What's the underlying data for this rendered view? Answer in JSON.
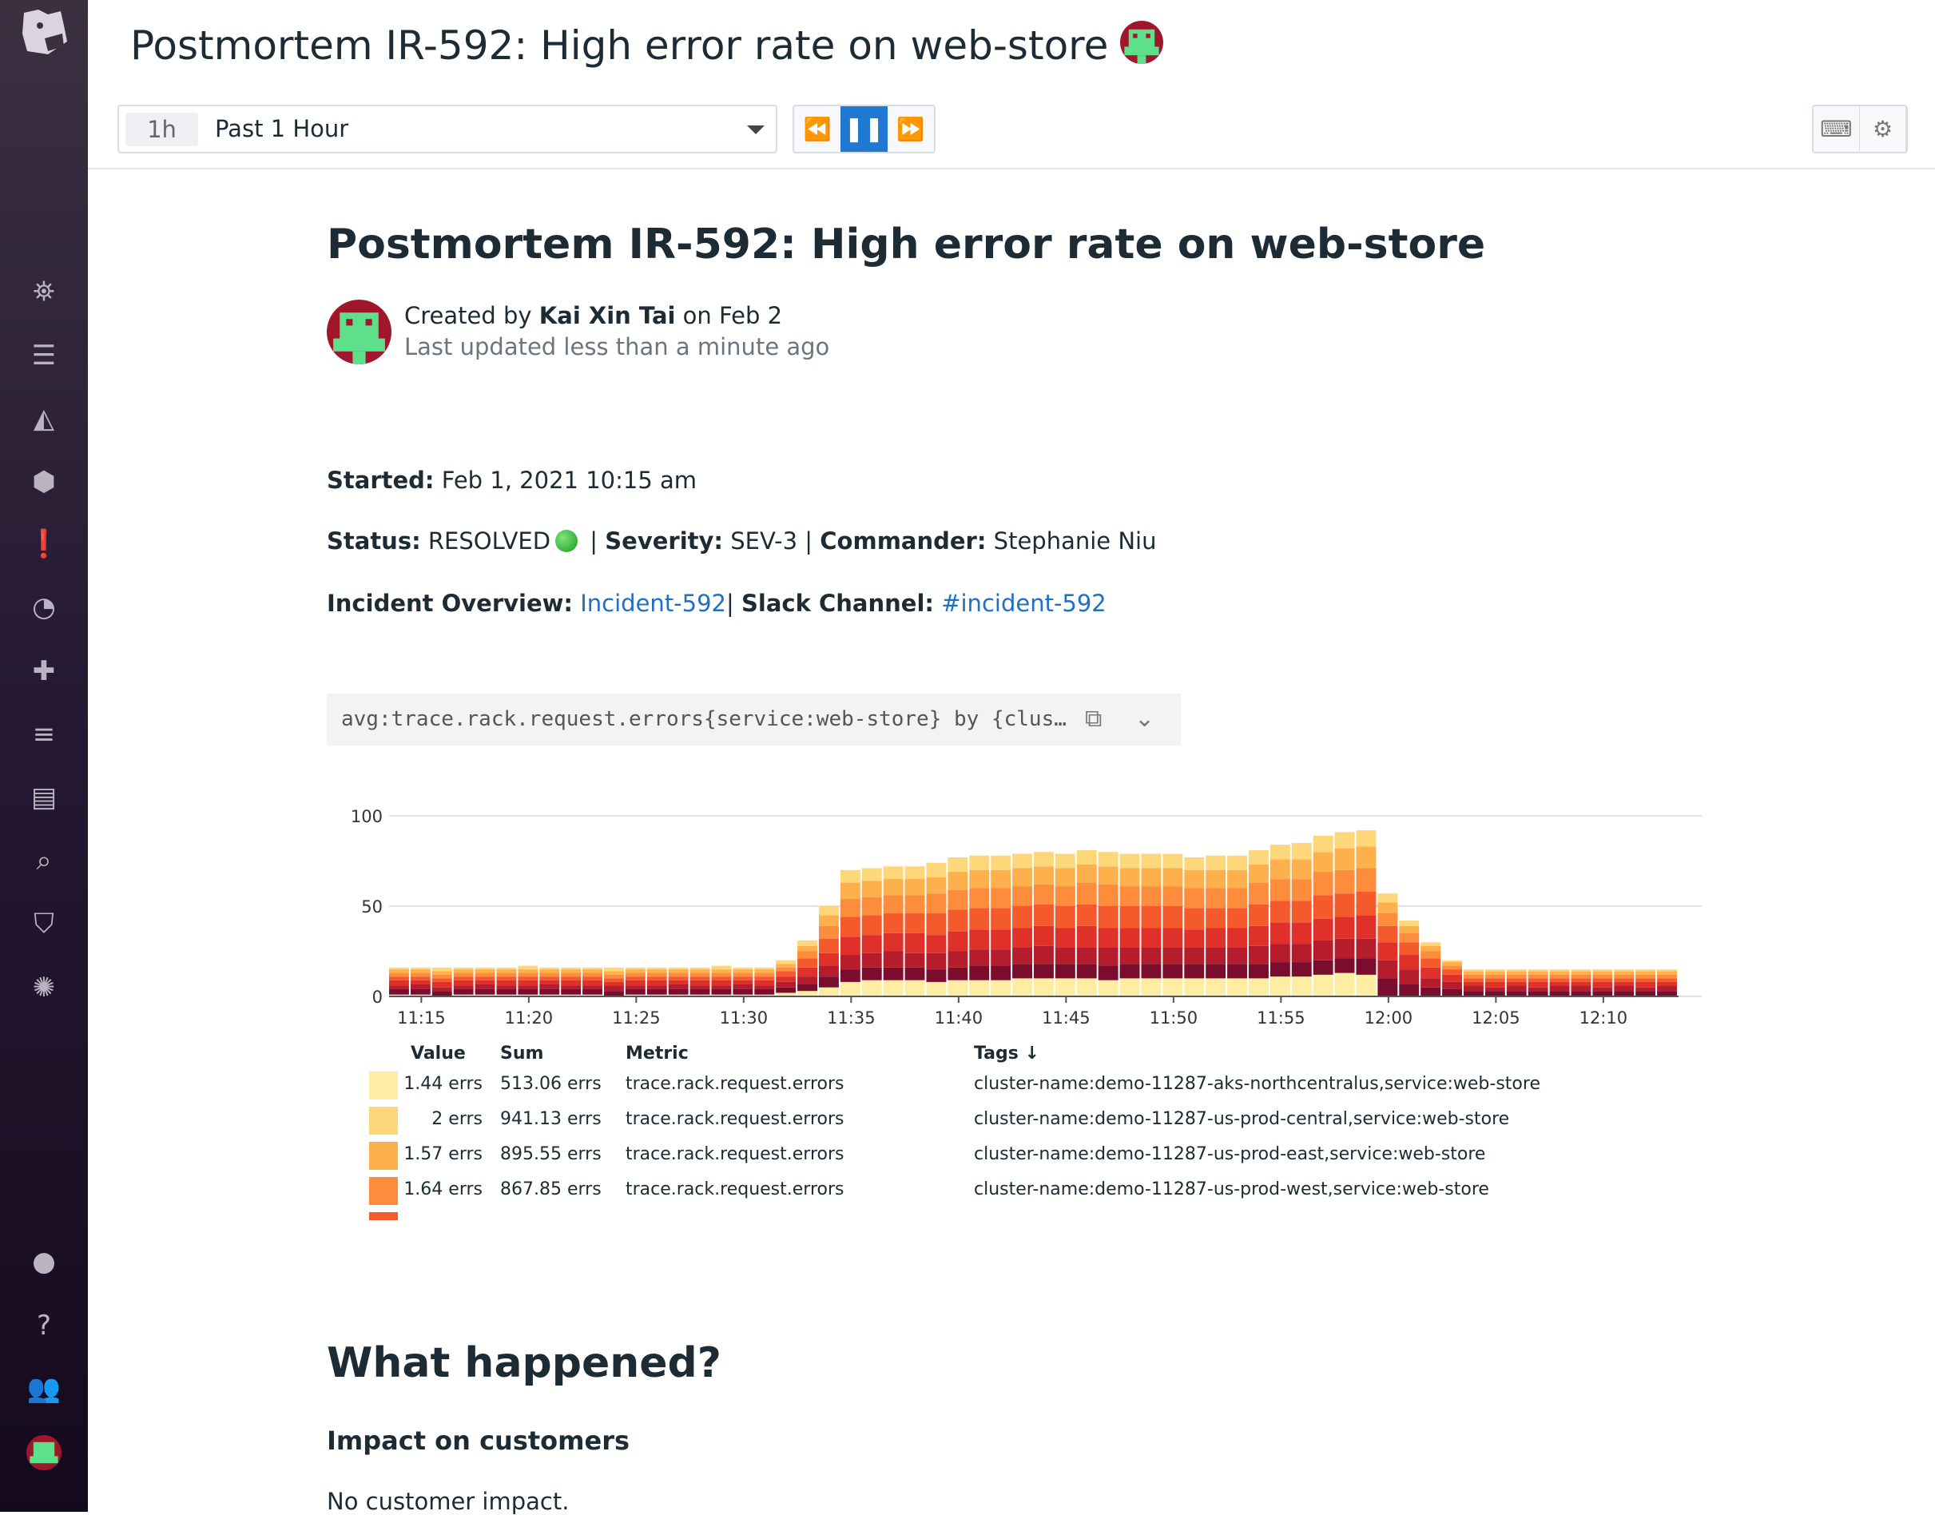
{
  "header": {
    "title": "Postmortem IR-592: High error rate on web-store"
  },
  "toolbar": {
    "time_pill": "1h",
    "time_label": "Past 1 Hour",
    "rewind": "rewind-icon",
    "pause": "pause-icon",
    "forward": "fast-forward-icon",
    "keyboard": "keyboard-icon",
    "settings": "gear-icon",
    "accent": "#1f78d1"
  },
  "sidebar": {
    "items": [
      "binoculars-icon",
      "list-icon",
      "area-chart-icon",
      "hexagons-icon",
      "alert-icon",
      "gauge-icon",
      "puzzle-icon",
      "filter-icon",
      "notebook-icon",
      "search-log-icon",
      "shield-icon",
      "network-icon",
      "chat-icon",
      "help-icon",
      "users-icon",
      "avatar"
    ]
  },
  "doc": {
    "title": "Postmortem IR-592: High error rate on web-store",
    "created_prefix": "Created by ",
    "author": "Kai Xin Tai",
    "created_suffix": " on Feb 2",
    "updated": "Last updated less than a minute ago",
    "started_label": "Started:",
    "started_value": " Feb 1, 2021 10:15 am",
    "status_label": "Status:",
    "status_value": " RESOLVED",
    "status_color": "#22aa22",
    "severity_label": "Severity:",
    "severity_value": " SEV-3",
    "commander_label": "Commander:",
    "commander_value": " Stephanie Niu",
    "overview_label": "Incident Overview:",
    "overview_link": "Incident-592",
    "slack_label": "Slack Channel:",
    "slack_link": "#incident-592",
    "query": "avg:trace.rack.request.errors{service:web-store} by {clus…",
    "what_happened": "What happened?",
    "impact_heading": "Impact on customers",
    "impact_text": "No customer impact."
  },
  "chart_data": {
    "type": "bar",
    "stacked": true,
    "grid": true,
    "ylim": [
      0,
      100
    ],
    "yticks": [
      "0",
      "50",
      "100"
    ],
    "xticks": [
      "11:15",
      "11:20",
      "11:25",
      "11:30",
      "11:35",
      "11:40",
      "11:45",
      "11:50",
      "11:55",
      "12:00",
      "12:05",
      "12:10"
    ],
    "x_start": "11:14",
    "x_end": "12:13",
    "interval": "1m",
    "series": [
      {
        "color": "#feeda2",
        "values": [
          1,
          1,
          0,
          1,
          1,
          1,
          1,
          1,
          1,
          1,
          0,
          1,
          1,
          1,
          1,
          1,
          1,
          1,
          2,
          3,
          5,
          8,
          9,
          9,
          9,
          8,
          9,
          9,
          9,
          10,
          10,
          10,
          10,
          9,
          10,
          10,
          10,
          10,
          10,
          10,
          10,
          11,
          11,
          12,
          13,
          12,
          0,
          0,
          0,
          0,
          0,
          0,
          0,
          0,
          0,
          0,
          0,
          0,
          0,
          0
        ]
      },
      {
        "color": "#7a0c2e",
        "values": [
          3,
          3,
          3,
          3,
          3,
          3,
          3,
          3,
          3,
          3,
          3,
          3,
          3,
          3,
          3,
          3,
          3,
          3,
          3,
          4,
          6,
          7,
          7,
          7,
          7,
          7,
          7,
          8,
          8,
          8,
          8,
          8,
          8,
          8,
          8,
          8,
          8,
          8,
          8,
          8,
          8,
          8,
          8,
          8,
          8,
          9,
          10,
          7,
          5,
          4,
          3,
          3,
          3,
          3,
          3,
          3,
          3,
          3,
          3,
          3
        ]
      },
      {
        "color": "#b51c2c",
        "values": [
          2,
          3,
          2,
          2,
          3,
          2,
          2,
          3,
          2,
          2,
          3,
          2,
          2,
          3,
          2,
          2,
          3,
          2,
          3,
          4,
          6,
          8,
          8,
          9,
          8,
          9,
          9,
          9,
          9,
          9,
          10,
          9,
          9,
          10,
          9,
          9,
          9,
          9,
          9,
          9,
          10,
          10,
          10,
          11,
          11,
          11,
          10,
          8,
          5,
          4,
          3,
          2,
          3,
          2,
          3,
          3,
          2,
          3,
          2,
          3
        ]
      },
      {
        "color": "#e0302a",
        "values": [
          3,
          2,
          3,
          3,
          2,
          3,
          3,
          2,
          3,
          3,
          2,
          3,
          3,
          2,
          3,
          3,
          2,
          3,
          3,
          5,
          7,
          10,
          10,
          10,
          11,
          10,
          11,
          11,
          11,
          11,
          11,
          11,
          12,
          11,
          11,
          11,
          11,
          10,
          11,
          11,
          11,
          12,
          12,
          12,
          12,
          13,
          10,
          8,
          6,
          4,
          2,
          3,
          2,
          3,
          2,
          2,
          3,
          2,
          3,
          2
        ]
      },
      {
        "color": "#f55a2c",
        "values": [
          2,
          2,
          2,
          2,
          2,
          2,
          2,
          2,
          2,
          2,
          2,
          2,
          2,
          2,
          2,
          2,
          2,
          2,
          3,
          5,
          8,
          11,
          11,
          11,
          11,
          12,
          12,
          12,
          12,
          12,
          12,
          12,
          12,
          12,
          12,
          12,
          12,
          12,
          11,
          11,
          12,
          12,
          12,
          13,
          13,
          13,
          9,
          7,
          5,
          3,
          2,
          2,
          2,
          2,
          2,
          2,
          2,
          2,
          2,
          2
        ]
      },
      {
        "color": "#fd8c3c",
        "values": [
          2,
          2,
          2,
          2,
          2,
          2,
          2,
          2,
          2,
          2,
          2,
          2,
          2,
          2,
          2,
          2,
          2,
          2,
          2,
          4,
          7,
          10,
          10,
          10,
          10,
          11,
          11,
          11,
          11,
          11,
          11,
          11,
          12,
          12,
          11,
          11,
          11,
          11,
          11,
          11,
          12,
          12,
          12,
          13,
          13,
          13,
          7,
          5,
          4,
          2,
          2,
          2,
          2,
          2,
          2,
          2,
          2,
          2,
          2,
          2
        ]
      },
      {
        "color": "#fdb04b",
        "values": [
          2,
          2,
          2,
          2,
          2,
          2,
          2,
          2,
          2,
          2,
          2,
          2,
          2,
          2,
          2,
          2,
          2,
          2,
          2,
          3,
          6,
          9,
          9,
          9,
          9,
          9,
          10,
          10,
          10,
          10,
          10,
          10,
          10,
          10,
          10,
          10,
          10,
          10,
          10,
          10,
          10,
          11,
          11,
          11,
          12,
          12,
          6,
          4,
          3,
          2,
          2,
          2,
          2,
          2,
          2,
          2,
          2,
          2,
          2,
          2
        ]
      },
      {
        "color": "#fdd77a",
        "values": [
          1,
          1,
          2,
          1,
          1,
          1,
          2,
          1,
          1,
          1,
          2,
          1,
          1,
          1,
          1,
          2,
          1,
          1,
          2,
          3,
          5,
          7,
          7,
          7,
          7,
          8,
          8,
          8,
          8,
          8,
          8,
          8,
          8,
          8,
          8,
          8,
          8,
          7,
          8,
          8,
          8,
          8,
          9,
          9,
          9,
          9,
          5,
          3,
          2,
          1,
          1,
          1,
          1,
          1,
          1,
          1,
          1,
          1,
          1,
          1
        ]
      }
    ],
    "legend": {
      "headers": [
        "Value",
        "Sum",
        "Metric",
        "Tags ↓"
      ],
      "rows": [
        {
          "color": "#feeda2",
          "value": "1.44 errs",
          "sum": "513.06 errs",
          "metric": "trace.rack.request.errors",
          "tags": "cluster-name:demo-11287-aks-northcentralus,service:web-store"
        },
        {
          "color": "#fdd77a",
          "value": "2 errs",
          "sum": "941.13 errs",
          "metric": "trace.rack.request.errors",
          "tags": "cluster-name:demo-11287-us-prod-central,service:web-store"
        },
        {
          "color": "#fdb04b",
          "value": "1.57 errs",
          "sum": "895.55 errs",
          "metric": "trace.rack.request.errors",
          "tags": "cluster-name:demo-11287-us-prod-east,service:web-store"
        },
        {
          "color": "#fd8c3c",
          "value": "1.64 errs",
          "sum": "867.85 errs",
          "metric": "trace.rack.request.errors",
          "tags": "cluster-name:demo-11287-us-prod-west,service:web-store"
        }
      ],
      "partial_row_color": "#f55a2c"
    }
  }
}
